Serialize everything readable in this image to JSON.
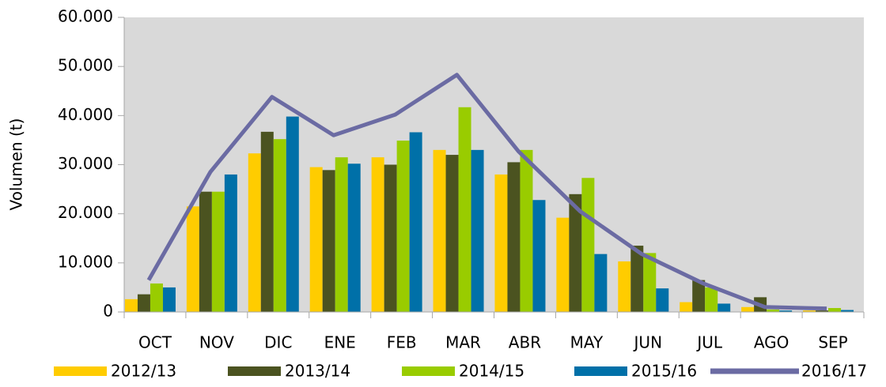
{
  "chart_data": {
    "type": "bar",
    "y_label": "Volumen (t)",
    "categories": [
      "OCT",
      "NOV",
      "DIC",
      "ENE",
      "FEB",
      "MAR",
      "ABR",
      "MAY",
      "JUN",
      "JUL",
      "AGO",
      "SEP"
    ],
    "series": [
      {
        "name": "2012/13",
        "color": "#ffcc00",
        "values": [
          2600,
          21500,
          32300,
          29500,
          31500,
          33000,
          28000,
          19200,
          10300,
          2000,
          1000,
          300
        ]
      },
      {
        "name": "2013/14",
        "color": "#4b5320",
        "values": [
          3600,
          24500,
          36700,
          28900,
          30000,
          32000,
          30500,
          24000,
          13500,
          6500,
          3000,
          300
        ]
      },
      {
        "name": "2014/15",
        "color": "#99cc00",
        "values": [
          5800,
          24500,
          35200,
          31500,
          34900,
          41700,
          33000,
          27300,
          12000,
          5000,
          500,
          800
        ]
      },
      {
        "name": "2015/16",
        "color": "#0070a8",
        "values": [
          5000,
          28000,
          39800,
          30200,
          36600,
          33000,
          22800,
          11800,
          4800,
          1700,
          300,
          400
        ]
      },
      {
        "name": "2016/17",
        "color": "#6b6ba3",
        "type": "line",
        "values": [
          6500,
          28500,
          43800,
          36000,
          40200,
          48300,
          32700,
          20500,
          11800,
          5800,
          1000,
          700
        ]
      }
    ],
    "ylim": [
      0,
      60000
    ],
    "yticks": [
      0,
      {
        "value": 10000,
        "label": "10.000"
      },
      {
        "value": 20000,
        "label": "20.000"
      },
      {
        "value": 30000,
        "label": "30.000"
      },
      {
        "value": 40000,
        "label": "40.000"
      },
      {
        "value": 50000,
        "label": "50.000"
      },
      {
        "value": 60000,
        "label": "60.000"
      }
    ],
    "grid": false,
    "legend": "bottom"
  }
}
